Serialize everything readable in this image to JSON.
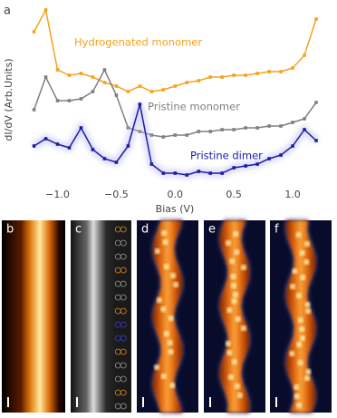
{
  "chart_data": {
    "type": "line",
    "panel_label": "a",
    "xlabel": "Bias (V)",
    "ylabel": "dI/dV (Arb.Units)",
    "x": [
      -1.2,
      -1.1,
      -1.0,
      -0.9,
      -0.8,
      -0.7,
      -0.6,
      -0.5,
      -0.4,
      -0.3,
      -0.2,
      -0.1,
      0.0,
      0.1,
      0.2,
      0.3,
      0.4,
      0.5,
      0.6,
      0.7,
      0.8,
      0.9,
      1.0,
      1.1,
      1.2
    ],
    "series": [
      {
        "name": "Hydrogenated monomer",
        "color": "#f5a21c",
        "values": [
          85,
          97,
          64,
          61,
          62,
          60,
          57,
          55,
          52,
          55,
          52,
          53,
          55,
          57,
          58,
          60,
          60,
          61,
          61,
          62,
          63,
          63,
          65,
          72,
          92
        ]
      },
      {
        "name": "Pristine monomer",
        "color": "#7f7f7f",
        "values": [
          42,
          60,
          47,
          47,
          48,
          52,
          64,
          50,
          32,
          30,
          28,
          27,
          28,
          28,
          30,
          30,
          31,
          31,
          32,
          32,
          33,
          33,
          35,
          37,
          46
        ]
      },
      {
        "name": "Pristine dimer",
        "color": "#1c1ca6",
        "values": [
          22,
          26,
          23,
          21,
          32,
          20,
          15,
          13,
          22,
          45,
          12,
          7,
          7,
          6,
          8,
          7,
          7,
          10,
          11,
          12,
          15,
          17,
          22,
          31,
          25
        ]
      }
    ],
    "xlim": [
      -1.32,
      1.3
    ],
    "ylim": [
      0,
      100
    ],
    "xticks": [
      {
        "value": -1.0,
        "label": "−1.0"
      },
      {
        "value": -0.5,
        "label": "−0.5"
      },
      {
        "value": 0.0,
        "label": "0.0"
      },
      0.5,
      {
        "value": 1.0,
        "label": "1.0"
      }
    ]
  },
  "panels": [
    "b",
    "c",
    "d",
    "e",
    "f"
  ]
}
